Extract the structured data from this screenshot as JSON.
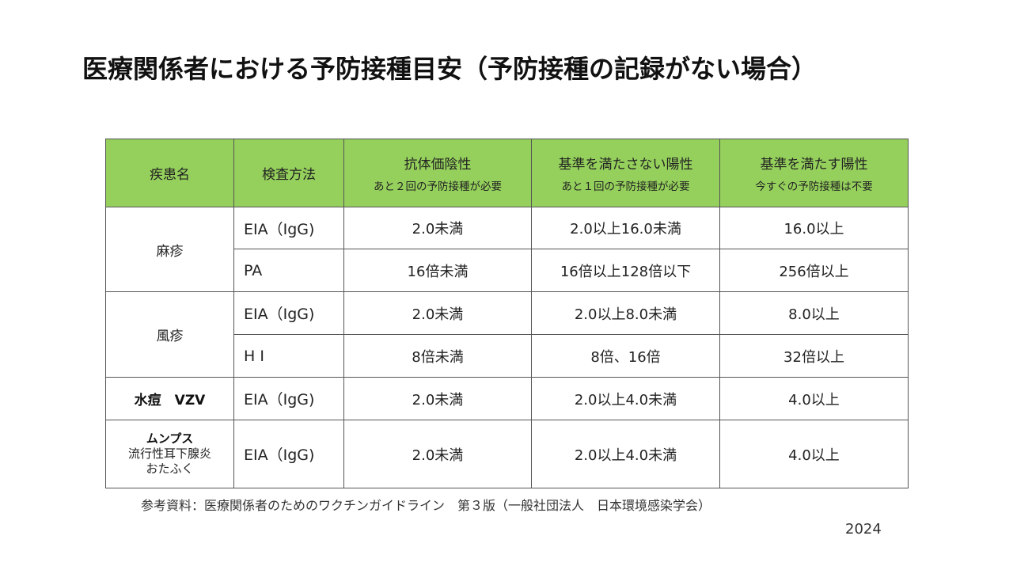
{
  "title": "医療関係者における予防接種目安（予防接種の記録がない場合）",
  "table": {
    "headers": {
      "disease": "疾患名",
      "method": "検査方法",
      "negative": {
        "label": "抗体価陰性",
        "note": "あと２回の予防接種が必要"
      },
      "below": {
        "label": "基準を満たさない陽性",
        "note": "あと１回の予防接種が必要"
      },
      "meets": {
        "label": "基準を満たす陽性",
        "note": "今すぐの予防接種は不要"
      }
    },
    "measles": {
      "name": "麻疹",
      "rows": [
        {
          "method": "EIA（IgG)",
          "negative": "2.0未満",
          "below": "2.0以上16.0未満",
          "meets": "16.0以上"
        },
        {
          "method": "PA",
          "negative": "16倍未満",
          "below": "16倍以上128倍以下",
          "meets": "256倍以上"
        }
      ]
    },
    "rubella": {
      "name": "風疹",
      "rows": [
        {
          "method": "EIA（IgG)",
          "negative": "2.0未満",
          "below": "2.0以上8.0未満",
          "meets": "8.0以上"
        },
        {
          "method": "H I",
          "negative": "8倍未満",
          "below": "8倍、16倍",
          "meets": "32倍以上"
        }
      ]
    },
    "varicella": {
      "name": "水痘　VZV",
      "row": {
        "method": "EIA（IgG)",
        "negative": "2.0未満",
        "below": "2.0以上4.0未満",
        "meets": "4.0以上"
      }
    },
    "mumps": {
      "name": "ムンプス",
      "sub1": "流行性耳下腺炎",
      "sub2": "おたふく",
      "row": {
        "method": "EIA（IgG)",
        "negative": "2.0未満",
        "below": "2.0以上4.0未満",
        "meets": "4.0以上"
      }
    }
  },
  "reference": "参考資料：医療関係者のためのワクチンガイドライン　第３版（一般社団法人　日本環境感染学会）",
  "year": "2024",
  "colors": {
    "header_bg": "#95d05c",
    "border": "#555555"
  }
}
